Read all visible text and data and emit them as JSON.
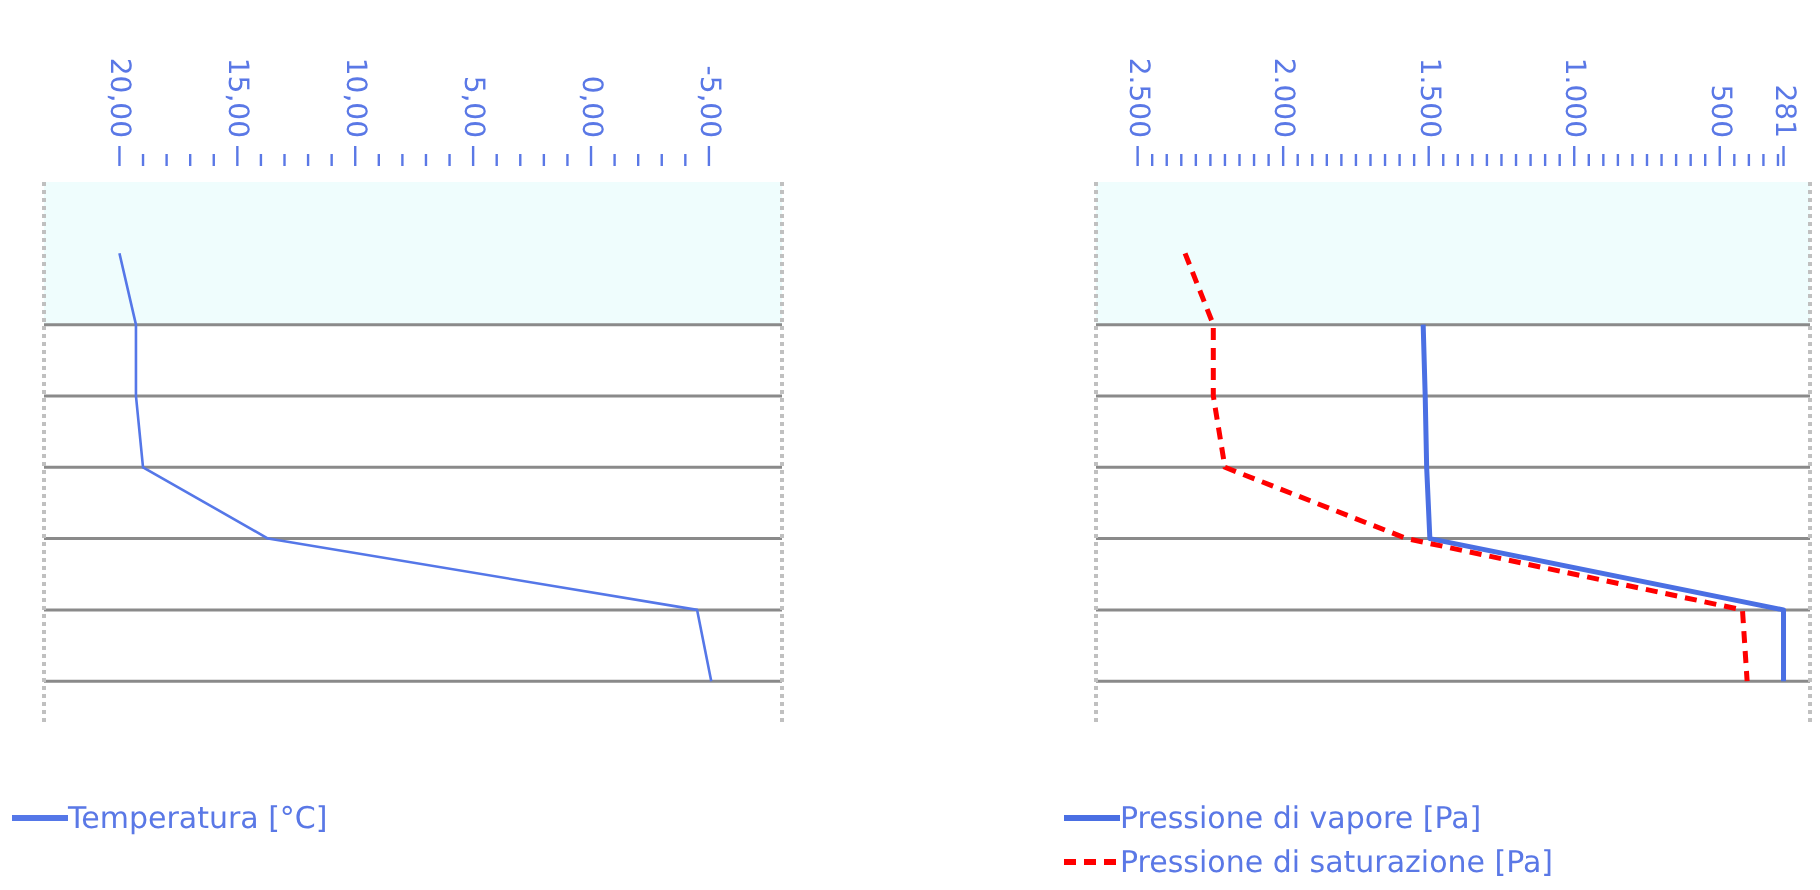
{
  "chart_data": [
    {
      "type": "line",
      "orientation": "horizontal",
      "categories": [
        null,
        null,
        null,
        null,
        null,
        null,
        null
      ],
      "xlim": [
        23.2,
        -8.1
      ],
      "xticks": [
        {
          "value": 20,
          "label": "20,00"
        },
        {
          "value": 19,
          "label": null
        },
        {
          "value": 18,
          "label": null
        },
        {
          "value": 17,
          "label": null
        },
        {
          "value": 16,
          "label": null
        },
        {
          "value": 15,
          "label": "15,00"
        },
        {
          "value": 14,
          "label": null
        },
        {
          "value": 13,
          "label": null
        },
        {
          "value": 12,
          "label": null
        },
        {
          "value": 11,
          "label": null
        },
        {
          "value": 10,
          "label": "10,00"
        },
        {
          "value": 9,
          "label": null
        },
        {
          "value": 8,
          "label": null
        },
        {
          "value": 7,
          "label": null
        },
        {
          "value": 6,
          "label": null
        },
        {
          "value": 5,
          "label": "5,00"
        },
        {
          "value": 4,
          "label": null
        },
        {
          "value": 3,
          "label": null
        },
        {
          "value": 2,
          "label": null
        },
        {
          "value": 1,
          "label": null
        },
        {
          "value": 0,
          "label": "0,00"
        },
        {
          "value": -1,
          "label": null
        },
        {
          "value": -2,
          "label": null
        },
        {
          "value": -3,
          "label": null
        },
        {
          "value": -4,
          "label": null
        },
        {
          "value": -5,
          "label": "-5,00"
        }
      ],
      "grid": "y",
      "legend": "bottom left",
      "marker": "none",
      "series": [
        {
          "name": "Temperatura [°C]",
          "color": "#5577e8",
          "values": [
            20.0,
            19.3,
            19.3,
            19.0,
            13.7,
            -4.5,
            -5.1
          ]
        }
      ]
    },
    {
      "type": "line",
      "orientation": "horizontal",
      "categories": [
        null,
        null,
        null,
        null,
        null,
        null,
        null
      ],
      "xlim": [
        2643,
        190
      ],
      "xticks": [
        {
          "value": 2500,
          "label": "2.500"
        },
        {
          "value": 2450,
          "label": null
        },
        {
          "value": 2400,
          "label": null
        },
        {
          "value": 2350,
          "label": null
        },
        {
          "value": 2300,
          "label": null
        },
        {
          "value": 2250,
          "label": null
        },
        {
          "value": 2200,
          "label": null
        },
        {
          "value": 2150,
          "label": null
        },
        {
          "value": 2100,
          "label": null
        },
        {
          "value": 2050,
          "label": null
        },
        {
          "value": 2000,
          "label": "2.000"
        },
        {
          "value": 1950,
          "label": null
        },
        {
          "value": 1900,
          "label": null
        },
        {
          "value": 1850,
          "label": null
        },
        {
          "value": 1800,
          "label": null
        },
        {
          "value": 1750,
          "label": null
        },
        {
          "value": 1700,
          "label": null
        },
        {
          "value": 1650,
          "label": null
        },
        {
          "value": 1600,
          "label": null
        },
        {
          "value": 1550,
          "label": null
        },
        {
          "value": 1500,
          "label": "1.500"
        },
        {
          "value": 1450,
          "label": null
        },
        {
          "value": 1400,
          "label": null
        },
        {
          "value": 1350,
          "label": null
        },
        {
          "value": 1300,
          "label": null
        },
        {
          "value": 1250,
          "label": null
        },
        {
          "value": 1200,
          "label": null
        },
        {
          "value": 1150,
          "label": null
        },
        {
          "value": 1100,
          "label": null
        },
        {
          "value": 1050,
          "label": null
        },
        {
          "value": 1000,
          "label": "1.000"
        },
        {
          "value": 950,
          "label": null
        },
        {
          "value": 900,
          "label": null
        },
        {
          "value": 850,
          "label": null
        },
        {
          "value": 800,
          "label": null
        },
        {
          "value": 750,
          "label": null
        },
        {
          "value": 700,
          "label": null
        },
        {
          "value": 650,
          "label": null
        },
        {
          "value": 600,
          "label": null
        },
        {
          "value": 550,
          "label": null
        },
        500,
        {
          "value": 450,
          "label": null
        },
        {
          "value": 400,
          "label": null
        },
        {
          "value": 350,
          "label": null
        },
        {
          "value": 300,
          "label": null
        },
        281
      ],
      "grid": "y",
      "legend": "bottom left",
      "marker": "none",
      "series": [
        {
          "name": "Pressione di vapore [Pa]",
          "color": "#4a6fe3",
          "values": [
            null,
            1519,
            1512,
            1507,
            1496,
            281,
            281
          ]
        },
        {
          "name": "Pressione di saturazione [Pa]",
          "color": "#ff0000",
          "line_style": "dashed",
          "values": [
            2337,
            2240,
            2240,
            2200,
            1576,
            422,
            406
          ]
        }
      ]
    }
  ]
}
